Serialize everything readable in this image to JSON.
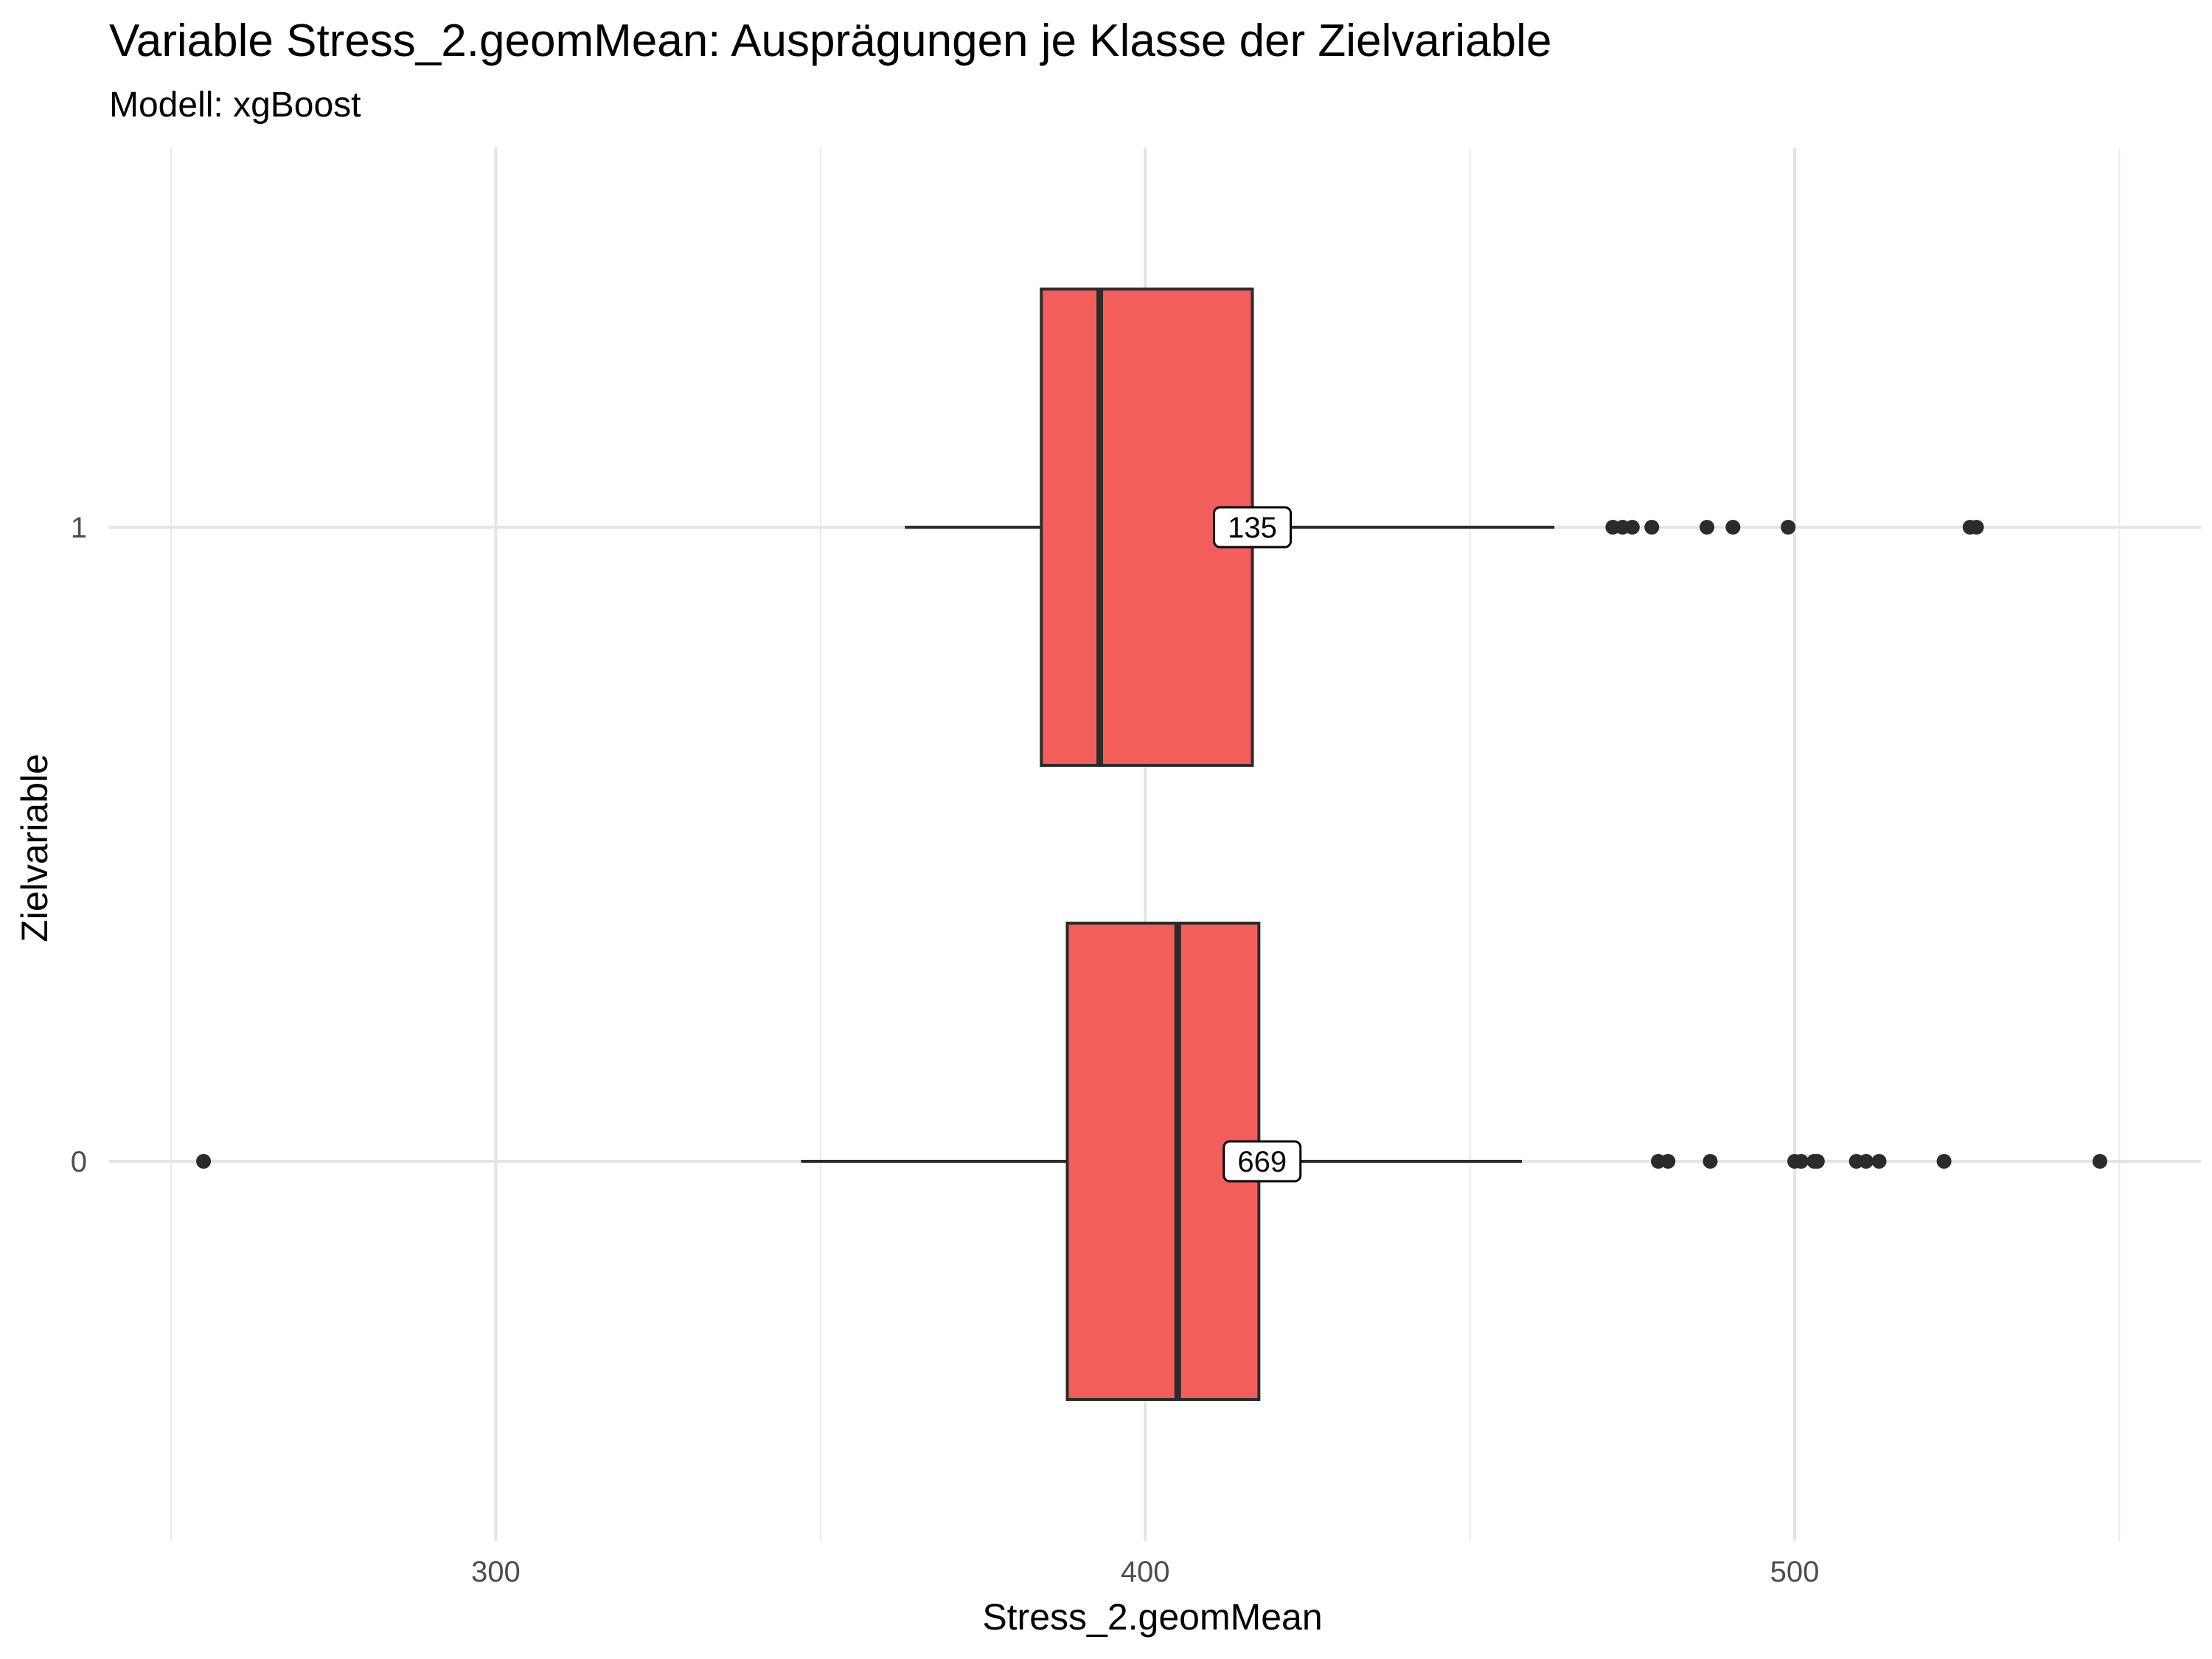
{
  "chart_data": {
    "type": "boxplot",
    "orientation": "horizontal",
    "title": "Variable Stress_2.geomMean: Ausprägungen je Klasse der Zielvariable",
    "subtitle": "Modell: xgBoost",
    "xlabel": "Stress_2.geomMean",
    "ylabel": "Zielvariable",
    "xlim": [
      240,
      560
    ],
    "x_ticks": [
      300,
      400,
      500
    ],
    "grid": true,
    "box_color": "#F35E5A",
    "series": [
      {
        "category": "1",
        "count_label": "135",
        "whisker_low": 363,
        "q1": 384,
        "median": 393,
        "q3": 416.5,
        "whisker_high": 463,
        "count_label_x": 416.5,
        "outliers": [
          472,
          473.5,
          475,
          478,
          486.5,
          490.5,
          499,
          527,
          528
        ]
      },
      {
        "category": "0",
        "count_label": "669",
        "whisker_low": 347,
        "q1": 388,
        "median": 405,
        "q3": 417.5,
        "whisker_high": 458,
        "count_label_x": 418,
        "outliers": [
          255,
          479,
          480.5,
          487,
          500,
          501,
          503,
          503.5,
          509.5,
          511,
          513,
          523,
          547
        ]
      }
    ]
  }
}
